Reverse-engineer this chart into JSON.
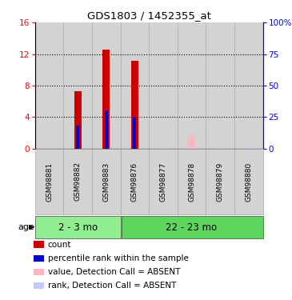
{
  "title": "GDS1803 / 1452355_at",
  "samples": [
    "GSM98881",
    "GSM98882",
    "GSM98883",
    "GSM98876",
    "GSM98877",
    "GSM98878",
    "GSM98879",
    "GSM98880"
  ],
  "group1_indices": [
    0,
    1,
    2
  ],
  "group2_indices": [
    3,
    4,
    5,
    6,
    7
  ],
  "group1_label": "2 - 3 mo",
  "group2_label": "22 - 23 mo",
  "group1_color": "#90EE90",
  "group2_color": "#5CD65C",
  "count_values": [
    0,
    7.3,
    12.6,
    11.1,
    0,
    0,
    0,
    0
  ],
  "rank_values_pct": [
    0,
    18,
    30,
    25,
    0,
    0,
    0,
    0
  ],
  "absent_value_values": [
    0,
    0,
    0,
    0,
    0,
    1.7,
    0,
    0
  ],
  "absent_rank_pct": [
    0,
    0,
    0,
    0,
    0.5,
    0.5,
    0.5,
    1.0
  ],
  "count_color": "#CC0000",
  "rank_color": "#0000CC",
  "absent_value_color": "#FFB6C1",
  "absent_rank_color": "#C8C8FF",
  "ylim_left": [
    0,
    16
  ],
  "ylim_right": [
    0,
    100
  ],
  "yticks_left": [
    0,
    4,
    8,
    12,
    16
  ],
  "yticks_right": [
    0,
    25,
    50,
    75,
    100
  ],
  "ytick_labels_right": [
    "0",
    "25",
    "50",
    "75",
    "100%"
  ],
  "cell_bg_color": "#D3D3D3",
  "cell_border_color": "#AAAAAA",
  "plot_bg_color": "#FFFFFF",
  "bar_width": 0.25,
  "rank_bar_width": 0.12,
  "legend_items": [
    {
      "color": "#CC0000",
      "label": "count"
    },
    {
      "color": "#0000CC",
      "label": "percentile rank within the sample"
    },
    {
      "color": "#FFB6C1",
      "label": "value, Detection Call = ABSENT"
    },
    {
      "color": "#C8C8FF",
      "label": "rank, Detection Call = ABSENT"
    }
  ]
}
